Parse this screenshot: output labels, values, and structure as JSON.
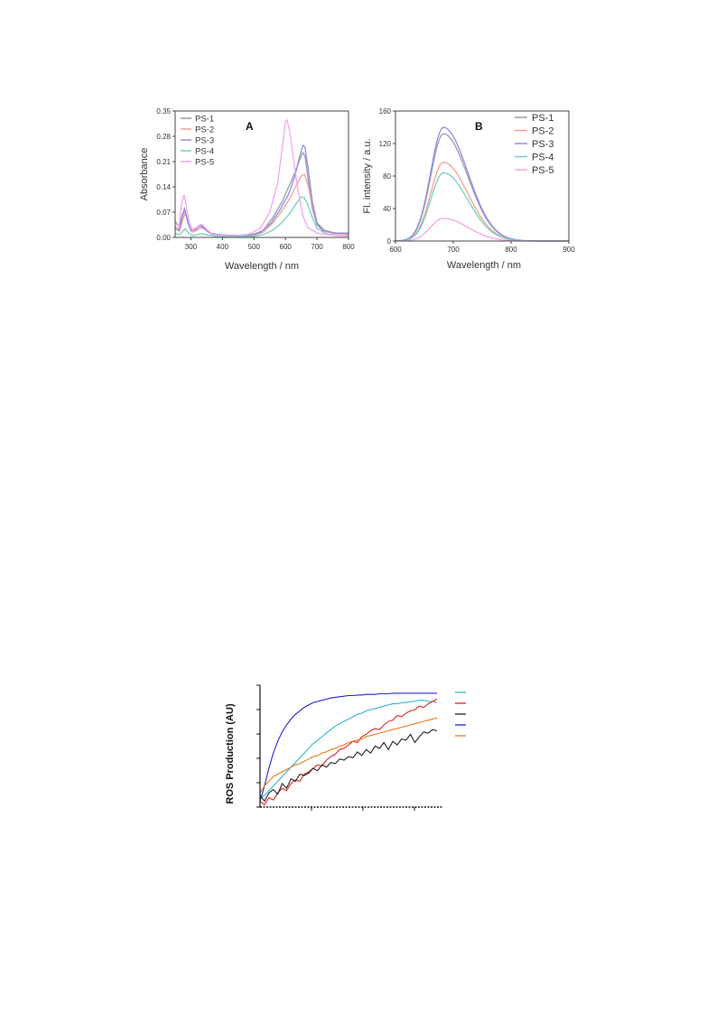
{
  "chart_data": [
    {
      "type": "line",
      "panel_label": "A",
      "xlabel": "Wavelength / nm",
      "ylabel": "Absorbance",
      "xlim": [
        250,
        800
      ],
      "ylim": [
        0,
        0.35
      ],
      "xticks": [
        "300",
        "400",
        "500",
        "600",
        "700",
        "800"
      ],
      "yticks": [
        "0.00",
        "0.07",
        "0.14",
        "0.21",
        "0.28",
        "0.35"
      ],
      "legend_position": "top-left",
      "series": [
        {
          "name": "PS-1",
          "color": "#9a9aa6",
          "points": [
            [
              250,
              0.045
            ],
            [
              262,
              0.03
            ],
            [
              272,
              0.06
            ],
            [
              280,
              0.08
            ],
            [
              290,
              0.045
            ],
            [
              300,
              0.02
            ],
            [
              315,
              0.025
            ],
            [
              330,
              0.035
            ],
            [
              345,
              0.025
            ],
            [
              360,
              0.012
            ],
            [
              400,
              0.006
            ],
            [
              450,
              0.004
            ],
            [
              500,
              0.008
            ],
            [
              530,
              0.02
            ],
            [
              560,
              0.055
            ],
            [
              590,
              0.1
            ],
            [
              610,
              0.14
            ],
            [
              630,
              0.18
            ],
            [
              645,
              0.215
            ],
            [
              655,
              0.235
            ],
            [
              662,
              0.225
            ],
            [
              672,
              0.16
            ],
            [
              685,
              0.08
            ],
            [
              700,
              0.035
            ],
            [
              720,
              0.018
            ],
            [
              760,
              0.012
            ],
            [
              800,
              0.012
            ]
          ]
        },
        {
          "name": "PS-2",
          "color": "#f0a090",
          "points": [
            [
              250,
              0.03
            ],
            [
              265,
              0.02
            ],
            [
              275,
              0.05
            ],
            [
              282,
              0.068
            ],
            [
              292,
              0.035
            ],
            [
              305,
              0.015
            ],
            [
              320,
              0.02
            ],
            [
              335,
              0.028
            ],
            [
              350,
              0.018
            ],
            [
              370,
              0.008
            ],
            [
              450,
              0.003
            ],
            [
              500,
              0.006
            ],
            [
              530,
              0.015
            ],
            [
              560,
              0.04
            ],
            [
              590,
              0.075
            ],
            [
              615,
              0.11
            ],
            [
              635,
              0.145
            ],
            [
              650,
              0.17
            ],
            [
              660,
              0.175
            ],
            [
              670,
              0.15
            ],
            [
              685,
              0.09
            ],
            [
              700,
              0.04
            ],
            [
              730,
              0.015
            ],
            [
              760,
              0.01
            ],
            [
              800,
              0.008
            ]
          ]
        },
        {
          "name": "PS-3",
          "color": "#8c8ce6",
          "points": [
            [
              250,
              0.025
            ],
            [
              262,
              0.018
            ],
            [
              272,
              0.055
            ],
            [
              280,
              0.078
            ],
            [
              290,
              0.042
            ],
            [
              300,
              0.018
            ],
            [
              315,
              0.022
            ],
            [
              330,
              0.032
            ],
            [
              345,
              0.022
            ],
            [
              365,
              0.01
            ],
            [
              420,
              0.006
            ],
            [
              480,
              0.006
            ],
            [
              520,
              0.014
            ],
            [
              555,
              0.04
            ],
            [
              585,
              0.08
            ],
            [
              610,
              0.12
            ],
            [
              630,
              0.17
            ],
            [
              645,
              0.225
            ],
            [
              655,
              0.255
            ],
            [
              662,
              0.25
            ],
            [
              672,
              0.19
            ],
            [
              685,
              0.1
            ],
            [
              700,
              0.04
            ],
            [
              720,
              0.02
            ],
            [
              760,
              0.012
            ],
            [
              800,
              0.012
            ]
          ]
        },
        {
          "name": "PS-4",
          "color": "#70d0c0",
          "points": [
            [
              250,
              0.01
            ],
            [
              265,
              0.008
            ],
            [
              275,
              0.018
            ],
            [
              282,
              0.024
            ],
            [
              292,
              0.012
            ],
            [
              305,
              0.005
            ],
            [
              320,
              0.008
            ],
            [
              335,
              0.011
            ],
            [
              350,
              0.007
            ],
            [
              380,
              0.003
            ],
            [
              500,
              0.003
            ],
            [
              530,
              0.008
            ],
            [
              560,
              0.02
            ],
            [
              590,
              0.042
            ],
            [
              615,
              0.068
            ],
            [
              635,
              0.095
            ],
            [
              650,
              0.112
            ],
            [
              660,
              0.11
            ],
            [
              670,
              0.092
            ],
            [
              685,
              0.055
            ],
            [
              700,
              0.025
            ],
            [
              730,
              0.01
            ],
            [
              770,
              0.005
            ],
            [
              800,
              0.004
            ]
          ]
        },
        {
          "name": "PS-5",
          "color": "#f4a4ec",
          "points": [
            [
              250,
              0.04
            ],
            [
              262,
              0.03
            ],
            [
              270,
              0.09
            ],
            [
              278,
              0.118
            ],
            [
              286,
              0.085
            ],
            [
              295,
              0.04
            ],
            [
              305,
              0.02
            ],
            [
              320,
              0.028
            ],
            [
              335,
              0.036
            ],
            [
              350,
              0.022
            ],
            [
              370,
              0.008
            ],
            [
              430,
              0.004
            ],
            [
              480,
              0.008
            ],
            [
              520,
              0.025
            ],
            [
              550,
              0.07
            ],
            [
              575,
              0.15
            ],
            [
              590,
              0.25
            ],
            [
              600,
              0.32
            ],
            [
              605,
              0.325
            ],
            [
              612,
              0.3
            ],
            [
              625,
              0.22
            ],
            [
              640,
              0.13
            ],
            [
              655,
              0.06
            ],
            [
              670,
              0.028
            ],
            [
              700,
              0.012
            ],
            [
              750,
              0.006
            ],
            [
              800,
              0.004
            ]
          ]
        }
      ]
    },
    {
      "type": "line",
      "panel_label": "B",
      "xlabel": "Wavelength / nm",
      "ylabel": "Fl. intensity / a.u.",
      "xlim": [
        600,
        900
      ],
      "ylim": [
        0,
        160
      ],
      "xticks": [
        "600",
        "700",
        "800",
        "900"
      ],
      "yticks": [
        "0",
        "40",
        "80",
        "120",
        "160"
      ],
      "legend_position": "top-right",
      "series": [
        {
          "name": "PS-1",
          "color": "#9a9aa6",
          "peak": 132
        },
        {
          "name": "PS-2",
          "color": "#f0a090",
          "peak": 97
        },
        {
          "name": "PS-3",
          "color": "#8c8ce6",
          "peak": 140
        },
        {
          "name": "PS-4",
          "color": "#70d0c0",
          "peak": 84
        },
        {
          "name": "PS-5",
          "color": "#f4a4ec",
          "peak": 28
        }
      ]
    },
    {
      "type": "line",
      "ylabel": "ROS  Production (AU)",
      "legend_position": "right",
      "series": [
        {
          "color": "#2fb4c8",
          "values": [
            0.08,
            0.1,
            0.14,
            0.18,
            0.22,
            0.26,
            0.3,
            0.34,
            0.38,
            0.42,
            0.46,
            0.5,
            0.54,
            0.57,
            0.6,
            0.63,
            0.66,
            0.69,
            0.71,
            0.73,
            0.75,
            0.77,
            0.79,
            0.8,
            0.82,
            0.83,
            0.84,
            0.85,
            0.86,
            0.87,
            0.88,
            0.88,
            0.89,
            0.89,
            0.9,
            0.9,
            0.91,
            0.91,
            0.9,
            0.9,
            0.89
          ]
        },
        {
          "color": "#e02020",
          "values": [
            0.05,
            0.02,
            0.08,
            0.06,
            0.12,
            0.16,
            0.14,
            0.2,
            0.23,
            0.22,
            0.28,
            0.3,
            0.33,
            0.36,
            0.35,
            0.4,
            0.43,
            0.45,
            0.49,
            0.5,
            0.53,
            0.56,
            0.55,
            0.6,
            0.62,
            0.65,
            0.67,
            0.66,
            0.7,
            0.73,
            0.74,
            0.78,
            0.77,
            0.8,
            0.82,
            0.83,
            0.86,
            0.85,
            0.88,
            0.9,
            0.92
          ]
        },
        {
          "color": "#202020",
          "values": [
            0.1,
            0.05,
            0.12,
            0.15,
            0.11,
            0.2,
            0.16,
            0.24,
            0.22,
            0.28,
            0.27,
            0.29,
            0.33,
            0.31,
            0.36,
            0.34,
            0.38,
            0.37,
            0.41,
            0.4,
            0.43,
            0.42,
            0.47,
            0.44,
            0.49,
            0.46,
            0.52,
            0.5,
            0.55,
            0.49,
            0.56,
            0.53,
            0.58,
            0.57,
            0.62,
            0.55,
            0.6,
            0.64,
            0.63,
            0.66,
            0.65
          ]
        },
        {
          "color": "#2020d8",
          "values": [
            0.05,
            0.18,
            0.33,
            0.46,
            0.56,
            0.64,
            0.7,
            0.75,
            0.79,
            0.82,
            0.85,
            0.87,
            0.89,
            0.9,
            0.91,
            0.92,
            0.93,
            0.935,
            0.94,
            0.945,
            0.95,
            0.95,
            0.955,
            0.955,
            0.96,
            0.96,
            0.96,
            0.965,
            0.965,
            0.965,
            0.97,
            0.97,
            0.97,
            0.97,
            0.97,
            0.97,
            0.97,
            0.97,
            0.97,
            0.97,
            0.97
          ]
        },
        {
          "color": "#e87818",
          "values": [
            0.12,
            0.18,
            0.22,
            0.26,
            0.28,
            0.3,
            0.32,
            0.34,
            0.36,
            0.37,
            0.39,
            0.41,
            0.43,
            0.44,
            0.46,
            0.47,
            0.49,
            0.5,
            0.52,
            0.53,
            0.55,
            0.56,
            0.57,
            0.58,
            0.6,
            0.61,
            0.62,
            0.63,
            0.64,
            0.65,
            0.66,
            0.67,
            0.68,
            0.69,
            0.7,
            0.71,
            0.72,
            0.73,
            0.74,
            0.75,
            0.76
          ]
        }
      ]
    }
  ]
}
